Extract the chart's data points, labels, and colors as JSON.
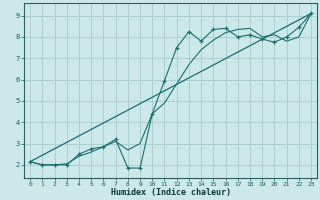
{
  "title": "",
  "xlabel": "Humidex (Indice chaleur)",
  "bg_color": "#cce8e8",
  "grid_color": "#aad0d0",
  "line_color": "#1a6e6e",
  "x_ticks": [
    0,
    1,
    2,
    3,
    4,
    5,
    6,
    7,
    8,
    9,
    10,
    11,
    12,
    13,
    14,
    15,
    16,
    17,
    18,
    19,
    20,
    21,
    22,
    23
  ],
  "y_ticks": [
    2,
    3,
    4,
    5,
    6,
    7,
    8,
    9
  ],
  "ylim": [
    1.4,
    9.6
  ],
  "xlim": [
    -0.5,
    23.5
  ],
  "line1_x": [
    0,
    1,
    2,
    3,
    4,
    5,
    6,
    7,
    8,
    9,
    10,
    11,
    12,
    13,
    14,
    15,
    16,
    17,
    18,
    19,
    20,
    21,
    22,
    23
  ],
  "line1_y": [
    2.15,
    2.0,
    2.0,
    2.0,
    2.5,
    2.75,
    2.85,
    3.2,
    1.85,
    1.85,
    4.4,
    5.95,
    7.5,
    8.25,
    7.8,
    8.35,
    8.4,
    8.0,
    8.1,
    7.9,
    7.75,
    8.0,
    8.45,
    9.1
  ],
  "line2_x": [
    0,
    1,
    2,
    3,
    4,
    5,
    6,
    7,
    8,
    9,
    10,
    11,
    12,
    13,
    14,
    15,
    16,
    17,
    18,
    19,
    20,
    21,
    22,
    23
  ],
  "line2_y": [
    2.15,
    2.0,
    2.0,
    2.05,
    2.4,
    2.6,
    2.85,
    3.1,
    2.7,
    3.0,
    4.4,
    4.9,
    5.8,
    6.7,
    7.4,
    7.85,
    8.2,
    8.35,
    8.4,
    8.0,
    8.1,
    7.8,
    8.0,
    9.1
  ],
  "line3_x": [
    0,
    23
  ],
  "line3_y": [
    2.15,
    9.1
  ]
}
